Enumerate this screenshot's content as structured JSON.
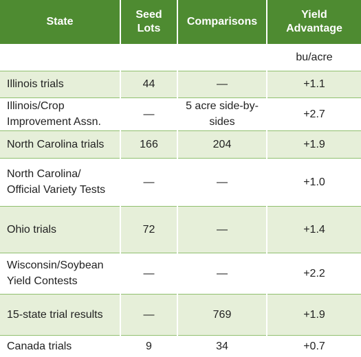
{
  "table": {
    "header": [
      "State",
      "Seed Lots",
      "Comparisons",
      "Yield Advantage"
    ],
    "unit": "bu/acre",
    "rows": [
      [
        "Illinois trials",
        "44",
        "—",
        "+1.1"
      ],
      [
        "Illinois/Crop Improvement Assn.",
        "—",
        "5 acre side-by-sides",
        "+2.7"
      ],
      [
        "North Carolina trials",
        "166",
        "204",
        "+1.9"
      ],
      [
        "North Carolina/ Official Variety Tests",
        "—",
        "—",
        "+1.0"
      ],
      [
        "Ohio trials",
        "72",
        "—",
        "+1.4"
      ],
      [
        "Wisconsin/Soybean Yield Contests",
        "—",
        "—",
        "+2.2"
      ],
      [
        "15-state trial results",
        "—",
        "769",
        "+1.9"
      ],
      [
        "Canada trials",
        "9",
        "34",
        "+0.7"
      ]
    ]
  }
}
